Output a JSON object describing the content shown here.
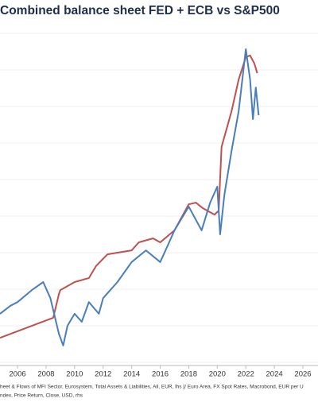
{
  "chart_data": {
    "type": "line",
    "title": "Combined balance sheet FED + ECB vs S&P500",
    "notes": [
      "heet & Flows of MFI Sector, Eurosystem, Total Assets & Liabilities, All, EUR, lhs [/ Euro Area, FX Spot Rates, Macrobond, EUR per U",
      "ndex, Price Return, Close, USD, rhs"
    ],
    "xlim": [
      2004.77,
      2027.06
    ],
    "xticks": [
      2006,
      2008,
      2010,
      2012,
      2014,
      2016,
      2018,
      2020,
      2022,
      2024,
      2026
    ],
    "ylim": [
      0,
      100
    ],
    "series": [
      {
        "color": "#c0504d",
        "x": [
          2004.77,
          2007,
          2008.5,
          2008.9,
          2009,
          2010,
          2011,
          2011.5,
          2012.3,
          2013,
          2014,
          2014.5,
          2015.5,
          2016,
          2017,
          2018,
          2018.5,
          2019,
          2019.8,
          2020.1,
          2020.3,
          2021,
          2021.5,
          2022,
          2022.3,
          2022.6,
          2022.8
        ],
        "values": [
          8.3,
          11.9,
          14.3,
          21.4,
          22.6,
          25,
          26.2,
          29.8,
          33.3,
          33.8,
          34.5,
          36.9,
          38.1,
          36.9,
          40.5,
          48.3,
          48.8,
          47.1,
          45.2,
          46.4,
          65.5,
          76.2,
          85.7,
          92.4,
          92.9,
          90.5,
          87.6
        ]
      },
      {
        "color": "#4a7ebb",
        "x": [
          2004.77,
          2005.5,
          2006,
          2007,
          2007.8,
          2008.3,
          2008.9,
          2009.2,
          2009.5,
          2010,
          2010.5,
          2011,
          2011.7,
          2012,
          2013,
          2014,
          2015,
          2016,
          2016.5,
          2017,
          2018,
          2018.9,
          2019.5,
          2020,
          2020.2,
          2020.5,
          2021,
          2021.5,
          2022,
          2022.3,
          2022.5,
          2022.7,
          2022.9
        ],
        "values": [
          15.5,
          17.9,
          19,
          22.6,
          25,
          20.2,
          9.5,
          6,
          11.9,
          15.5,
          13.1,
          19,
          15.5,
          20.2,
          25,
          31,
          34.5,
          31,
          35.7,
          40.5,
          47.6,
          40.5,
          48.8,
          53.6,
          39.3,
          51.2,
          64.3,
          76.2,
          94.8,
          85.7,
          73.8,
          83.3,
          75
        ]
      }
    ]
  }
}
